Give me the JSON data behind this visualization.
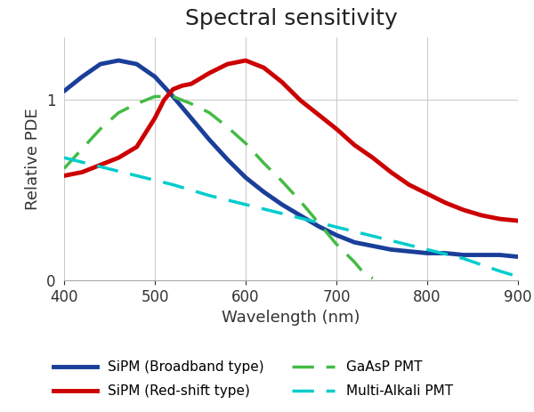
{
  "title": "Spectral sensitivity",
  "xlabel": "Wavelength (nm)",
  "ylabel": "Relative PDE",
  "xlim": [
    400,
    900
  ],
  "ylim": [
    0,
    1.35
  ],
  "yticks": [
    0,
    1
  ],
  "xticks": [
    400,
    500,
    600,
    700,
    800,
    900
  ],
  "sipm_broadband": {
    "x": [
      400,
      420,
      440,
      460,
      480,
      500,
      520,
      540,
      560,
      580,
      600,
      620,
      640,
      660,
      680,
      700,
      720,
      740,
      760,
      780,
      800,
      820,
      840,
      860,
      880,
      900
    ],
    "y": [
      1.05,
      1.13,
      1.2,
      1.22,
      1.2,
      1.13,
      1.02,
      0.9,
      0.78,
      0.67,
      0.57,
      0.49,
      0.42,
      0.36,
      0.3,
      0.25,
      0.21,
      0.19,
      0.17,
      0.16,
      0.15,
      0.15,
      0.14,
      0.14,
      0.14,
      0.13
    ],
    "color": "#1a3f99",
    "linewidth": 3.5,
    "label": "SiPM (Broadband type)"
  },
  "sipm_redshift": {
    "x": [
      400,
      420,
      440,
      460,
      480,
      500,
      510,
      520,
      530,
      540,
      560,
      580,
      600,
      620,
      640,
      660,
      680,
      700,
      720,
      740,
      760,
      780,
      800,
      820,
      840,
      860,
      880,
      900
    ],
    "y": [
      0.58,
      0.6,
      0.64,
      0.68,
      0.74,
      0.9,
      1.0,
      1.06,
      1.08,
      1.09,
      1.15,
      1.2,
      1.22,
      1.18,
      1.1,
      1.0,
      0.92,
      0.84,
      0.75,
      0.68,
      0.6,
      0.53,
      0.48,
      0.43,
      0.39,
      0.36,
      0.34,
      0.33
    ],
    "color": "#cc0000",
    "linewidth": 3.5,
    "label": "SiPM (Red-shift type)"
  },
  "gaasp_pmt": {
    "x": [
      400,
      420,
      440,
      460,
      480,
      500,
      520,
      540,
      560,
      580,
      600,
      620,
      640,
      660,
      680,
      700,
      720,
      730,
      740
    ],
    "y": [
      0.62,
      0.73,
      0.84,
      0.93,
      0.98,
      1.02,
      1.02,
      0.98,
      0.93,
      0.85,
      0.76,
      0.65,
      0.55,
      0.44,
      0.32,
      0.2,
      0.1,
      0.04,
      0.01
    ],
    "color": "#44bb44",
    "linewidth": 2.5,
    "label": "GaAsP PMT"
  },
  "multialkali_pmt": {
    "x": [
      400,
      440,
      480,
      520,
      560,
      600,
      640,
      680,
      720,
      760,
      800,
      840,
      880,
      900
    ],
    "y": [
      0.68,
      0.63,
      0.58,
      0.53,
      0.47,
      0.42,
      0.37,
      0.32,
      0.27,
      0.22,
      0.17,
      0.12,
      0.05,
      0.02
    ],
    "color": "#00cccc",
    "linewidth": 2.5,
    "label": "Multi-Alkali PMT"
  },
  "background_color": "#ffffff",
  "title_fontsize": 18,
  "label_fontsize": 13,
  "tick_fontsize": 12,
  "legend_fontsize": 11
}
